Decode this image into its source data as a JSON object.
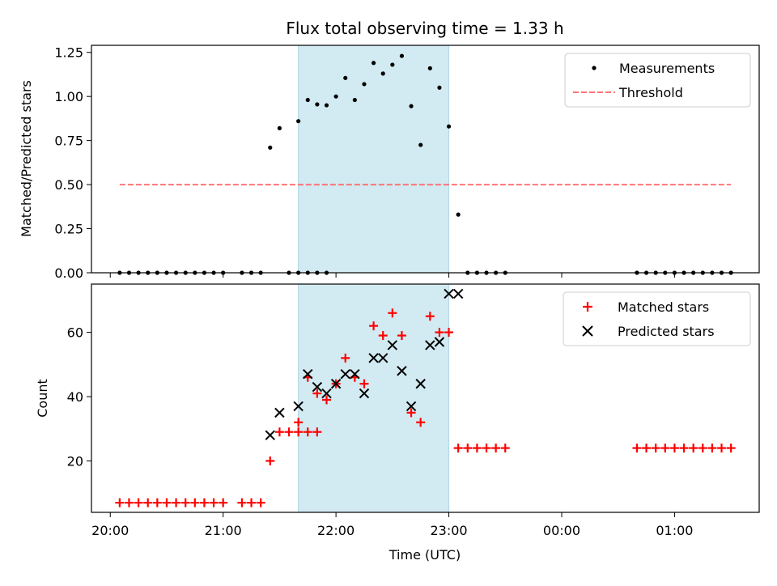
{
  "chart_data": [
    {
      "type": "scatter",
      "title": "Flux total observing time = 1.33 h",
      "ylabel": "Matched/Predicted stars",
      "xlabel": "",
      "xlim": [
        "19:50",
        "01:45"
      ],
      "ylim": [
        0,
        1.29
      ],
      "yticks": [
        0.0,
        0.25,
        0.5,
        0.75,
        1.0,
        1.25
      ],
      "ytick_labels": [
        "0.00",
        "0.25",
        "0.50",
        "0.75",
        "1.00",
        "1.25"
      ],
      "highlight_span": [
        "21:40",
        "23:00"
      ],
      "highlight_color": "#add8e6",
      "legend_position": "top-right",
      "series": [
        {
          "name": "Measurements",
          "kind": "points",
          "color": "#000000",
          "points": [
            [
              "20:05",
              0
            ],
            [
              "20:10",
              0
            ],
            [
              "20:15",
              0
            ],
            [
              "20:20",
              0
            ],
            [
              "20:25",
              0
            ],
            [
              "20:30",
              0
            ],
            [
              "20:35",
              0
            ],
            [
              "20:40",
              0
            ],
            [
              "20:45",
              0
            ],
            [
              "20:50",
              0
            ],
            [
              "20:55",
              0
            ],
            [
              "21:00",
              0
            ],
            [
              "21:10",
              0
            ],
            [
              "21:15",
              0
            ],
            [
              "21:20",
              0
            ],
            [
              "21:25",
              0.71
            ],
            [
              "21:30",
              0.82
            ],
            [
              "21:35",
              0
            ],
            [
              "21:40",
              0
            ],
            [
              "21:45",
              0
            ],
            [
              "21:50",
              0
            ],
            [
              "21:55",
              0
            ],
            [
              "21:40",
              0.86
            ],
            [
              "21:45",
              0.98
            ],
            [
              "21:50",
              0.955
            ],
            [
              "21:55",
              0.95
            ],
            [
              "22:00",
              1.0
            ],
            [
              "22:05",
              1.105
            ],
            [
              "22:10",
              0.98
            ],
            [
              "22:15",
              1.07
            ],
            [
              "22:20",
              1.19
            ],
            [
              "22:25",
              1.13
            ],
            [
              "22:30",
              1.18
            ],
            [
              "22:35",
              1.23
            ],
            [
              "22:40",
              0.945
            ],
            [
              "22:45",
              0.725
            ],
            [
              "22:50",
              1.16
            ],
            [
              "22:55",
              1.05
            ],
            [
              "23:00",
              0.83
            ],
            [
              "23:05",
              0.33
            ],
            [
              "23:10",
              0
            ],
            [
              "23:15",
              0
            ],
            [
              "23:20",
              0
            ],
            [
              "23:25",
              0
            ],
            [
              "23:30",
              0
            ],
            [
              "00:40",
              0
            ],
            [
              "00:45",
              0
            ],
            [
              "00:50",
              0
            ],
            [
              "00:55",
              0
            ],
            [
              "01:00",
              0
            ],
            [
              "01:05",
              0
            ],
            [
              "01:10",
              0
            ],
            [
              "01:15",
              0
            ],
            [
              "01:20",
              0
            ],
            [
              "01:25",
              0
            ],
            [
              "01:30",
              0
            ]
          ]
        },
        {
          "name": "Threshold",
          "kind": "dashed-line",
          "color": "#ff6666",
          "points": [
            [
              "20:05",
              0.5
            ],
            [
              "01:30",
              0.5
            ]
          ]
        }
      ]
    },
    {
      "type": "scatter",
      "title": "",
      "ylabel": "Count",
      "xlabel": "Time (UTC)",
      "xlim": [
        "19:50",
        "01:45"
      ],
      "ylim": [
        4,
        75
      ],
      "yticks": [
        20,
        40,
        60
      ],
      "ytick_labels": [
        "20",
        "40",
        "60"
      ],
      "xticks": [
        "20:00",
        "21:00",
        "22:00",
        "23:00",
        "00:00",
        "01:00"
      ],
      "xtick_labels": [
        "20:00",
        "21:00",
        "22:00",
        "23:00",
        "00:00",
        "01:00"
      ],
      "highlight_span": [
        "21:40",
        "23:00"
      ],
      "highlight_color": "#add8e6",
      "legend_position": "top-right",
      "series": [
        {
          "name": "Matched stars",
          "kind": "plus",
          "color": "#ff0000",
          "points": [
            [
              "20:05",
              7
            ],
            [
              "20:10",
              7
            ],
            [
              "20:15",
              7
            ],
            [
              "20:20",
              7
            ],
            [
              "20:25",
              7
            ],
            [
              "20:30",
              7
            ],
            [
              "20:35",
              7
            ],
            [
              "20:40",
              7
            ],
            [
              "20:45",
              7
            ],
            [
              "20:50",
              7
            ],
            [
              "20:55",
              7
            ],
            [
              "21:00",
              7
            ],
            [
              "21:10",
              7
            ],
            [
              "21:15",
              7
            ],
            [
              "21:20",
              7
            ],
            [
              "21:25",
              20
            ],
            [
              "21:30",
              29
            ],
            [
              "21:35",
              29
            ],
            [
              "21:40",
              29
            ],
            [
              "21:45",
              29
            ],
            [
              "21:50",
              29
            ],
            [
              "21:40",
              32
            ],
            [
              "21:45",
              46
            ],
            [
              "21:50",
              41
            ],
            [
              "21:55",
              39
            ],
            [
              "22:00",
              44
            ],
            [
              "22:05",
              52
            ],
            [
              "22:10",
              46
            ],
            [
              "22:15",
              44
            ],
            [
              "22:20",
              62
            ],
            [
              "22:25",
              59
            ],
            [
              "22:30",
              66
            ],
            [
              "22:35",
              59
            ],
            [
              "22:40",
              35
            ],
            [
              "22:45",
              32
            ],
            [
              "22:50",
              65
            ],
            [
              "22:55",
              60
            ],
            [
              "23:00",
              60
            ],
            [
              "23:05",
              24
            ],
            [
              "23:10",
              24
            ],
            [
              "23:15",
              24
            ],
            [
              "23:20",
              24
            ],
            [
              "23:25",
              24
            ],
            [
              "23:30",
              24
            ],
            [
              "00:40",
              24
            ],
            [
              "00:45",
              24
            ],
            [
              "00:50",
              24
            ],
            [
              "00:55",
              24
            ],
            [
              "01:00",
              24
            ],
            [
              "01:05",
              24
            ],
            [
              "01:10",
              24
            ],
            [
              "01:15",
              24
            ],
            [
              "01:20",
              24
            ],
            [
              "01:25",
              24
            ],
            [
              "01:30",
              24
            ]
          ]
        },
        {
          "name": "Predicted stars",
          "kind": "x",
          "color": "#000000",
          "points": [
            [
              "21:25",
              28
            ],
            [
              "21:30",
              35
            ],
            [
              "21:40",
              37
            ],
            [
              "21:45",
              47
            ],
            [
              "21:50",
              43
            ],
            [
              "21:55",
              41
            ],
            [
              "22:00",
              44
            ],
            [
              "22:05",
              47
            ],
            [
              "22:10",
              47
            ],
            [
              "22:15",
              41
            ],
            [
              "22:20",
              52
            ],
            [
              "22:25",
              52
            ],
            [
              "22:30",
              56
            ],
            [
              "22:35",
              48
            ],
            [
              "22:40",
              37
            ],
            [
              "22:45",
              44
            ],
            [
              "22:50",
              56
            ],
            [
              "22:55",
              57
            ],
            [
              "23:00",
              72
            ],
            [
              "23:05",
              72
            ]
          ]
        }
      ]
    }
  ]
}
